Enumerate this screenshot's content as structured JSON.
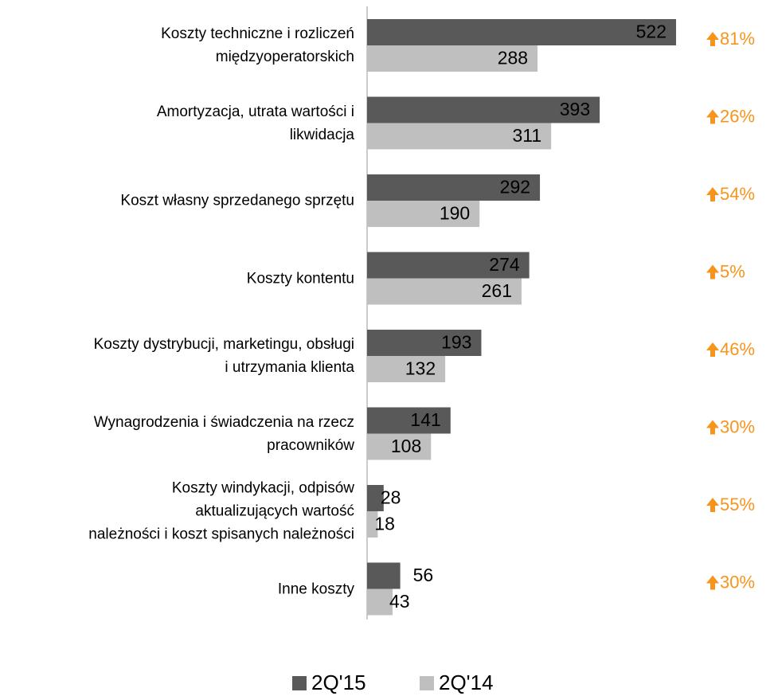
{
  "chart_data": {
    "type": "hbar",
    "categories": [
      "Koszty techniczne i rozliczeń\nmiędzyoperatorskich",
      "Amortyzacja, utrata wartości i\nlikwidacja",
      "Koszt własny sprzedanego sprzętu",
      "Koszty kontentu",
      "Koszty dystrybucji, marketingu, obsługi\ni utrzymania klienta",
      "Wynagrodzenia i świadczenia na rzecz\npracowników",
      "Koszty windykacji, odpisów\naktualizujących wartość\nnależności i koszt spisanych należności",
      "Inne koszty"
    ],
    "series": [
      {
        "name": "2Q'15",
        "color": "#595959",
        "values": [
          522,
          393,
          292,
          274,
          193,
          141,
          28,
          56
        ]
      },
      {
        "name": "2Q'14",
        "color": "#bfbfbf",
        "values": [
          288,
          311,
          190,
          261,
          132,
          108,
          18,
          43
        ]
      }
    ],
    "annotations": [
      "81%",
      "26%",
      "54%",
      "5%",
      "46%",
      "30%",
      "55%",
      "30%"
    ],
    "annotation_color": "#f7941d",
    "xlim": [
      0,
      600
    ]
  }
}
